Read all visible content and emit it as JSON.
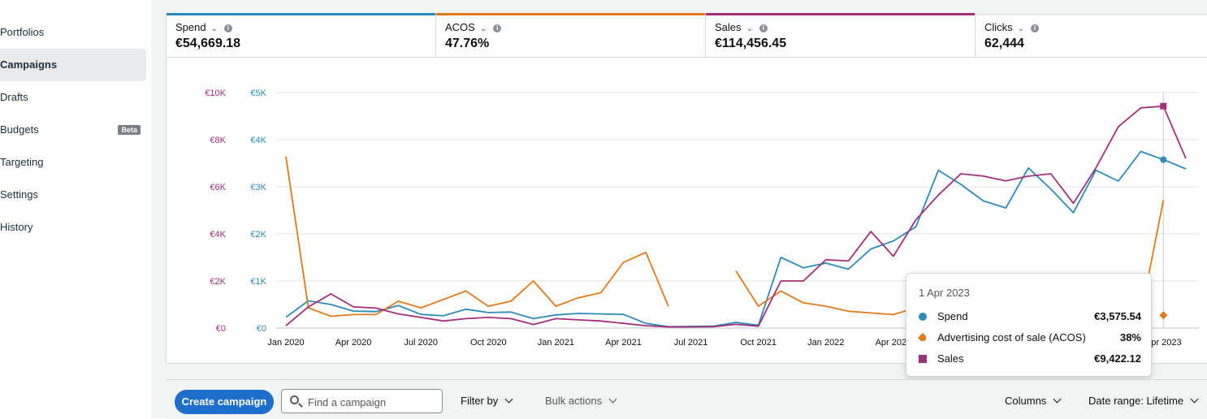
{
  "sidebar": {
    "items": [
      {
        "label": "Portfolios",
        "active": false
      },
      {
        "label": "Campaigns",
        "active": true
      },
      {
        "label": "Drafts",
        "active": false
      },
      {
        "label": "Budgets",
        "active": false,
        "badge": "Beta"
      },
      {
        "label": "Targeting",
        "active": false
      },
      {
        "label": "Settings",
        "active": false
      },
      {
        "label": "History",
        "active": false
      }
    ]
  },
  "metrics": [
    {
      "label": "Spend",
      "value": "€54,669.18",
      "color": "#2e8bb8"
    },
    {
      "label": "ACOS",
      "value": "47.76%",
      "color": "#e07a1b"
    },
    {
      "label": "Sales",
      "value": "€114,456.45",
      "color": "#a1307a"
    },
    {
      "label": "Clicks",
      "value": "62,444",
      "color": "#e9eaec"
    }
  ],
  "chart_data": {
    "type": "line",
    "x": [
      "Jan 2020",
      "Feb 2020",
      "Mar 2020",
      "Apr 2020",
      "May 2020",
      "Jun 2020",
      "Jul 2020",
      "Aug 2020",
      "Sep 2020",
      "Oct 2020",
      "Nov 2020",
      "Dec 2020",
      "Jan 2021",
      "Feb 2021",
      "Mar 2021",
      "Apr 2021",
      "May 2021",
      "Jun 2021",
      "Jul 2021",
      "Aug 2021",
      "Sep 2021",
      "Oct 2021",
      "Nov 2021",
      "Dec 2021",
      "Jan 2022",
      "Feb 2022",
      "Mar 2022",
      "Apr 2022",
      "May 2022",
      "Jun 2022",
      "Jul 2022",
      "Aug 2022",
      "Sep 2022",
      "Oct 2022",
      "Nov 2022",
      "Dec 2022",
      "Jan 2023",
      "Feb 2023",
      "Mar 2023",
      "Apr 2023",
      "May 2023"
    ],
    "x_tick_labels": [
      "Jan 2020",
      "Apr 2020",
      "Jul 2020",
      "Oct 2020",
      "Jan 2021",
      "Apr 2021",
      "Jul 2021",
      "Oct 2021",
      "Jan 2022",
      "Apr 2022",
      "Apr 2023"
    ],
    "left_axis_sales": {
      "ticks": [
        "€0",
        "€2K",
        "€4K",
        "€6K",
        "€8K",
        "€10K"
      ],
      "range": [
        0,
        10000
      ],
      "color": "#a1307a"
    },
    "left_axis_spend": {
      "ticks": [
        "€0",
        "€1K",
        "€2K",
        "€3K",
        "€4K",
        "€5K"
      ],
      "range": [
        0,
        5000
      ],
      "color": "#2e8bb8"
    },
    "series": [
      {
        "name": "Spend",
        "color": "#2e8bb8",
        "axis": "spend",
        "values": [
          230,
          580,
          500,
          360,
          350,
          480,
          290,
          260,
          400,
          330,
          340,
          200,
          280,
          310,
          300,
          290,
          100,
          30,
          35,
          40,
          120,
          60,
          1500,
          1280,
          1380,
          1250,
          1680,
          1850,
          2150,
          3350,
          3050,
          2700,
          2550,
          3400,
          2950,
          2450,
          3350,
          3120,
          3750,
          3575.54,
          3380
        ]
      },
      {
        "name": "ACOS",
        "color": "#e07a1b",
        "axis": "acos",
        "values": [
          51,
          6,
          3.5,
          4,
          4,
          8,
          6,
          8.5,
          11,
          6.5,
          8,
          14,
          6.5,
          9,
          10.5,
          19.5,
          22.5,
          6.5,
          null,
          null,
          17,
          6.5,
          11,
          7.5,
          6.5,
          5,
          4.5,
          4,
          6,
          5,
          5,
          5,
          5,
          4,
          4,
          4,
          4,
          4,
          4,
          38,
          null
        ]
      },
      {
        "name": "Sales",
        "color": "#a1307a",
        "axis": "sales",
        "values": [
          100,
          900,
          1450,
          900,
          850,
          600,
          450,
          300,
          400,
          450,
          400,
          150,
          400,
          350,
          300,
          200,
          100,
          50,
          50,
          60,
          160,
          80,
          2000,
          2000,
          2900,
          2850,
          4100,
          3050,
          4600,
          5650,
          6550,
          6450,
          6250,
          6450,
          6550,
          5300,
          6800,
          8550,
          9350,
          9422.12,
          7200
        ]
      }
    ]
  },
  "tooltip": {
    "date": "1 Apr 2023",
    "rows": [
      {
        "name": "Spend",
        "value": "€3,575.54",
        "color": "#2e8bb8",
        "marker": "circle"
      },
      {
        "name": "Advertising cost of sale (ACOS)",
        "value": "38%",
        "color": "#e07a1b",
        "marker": "diamond"
      },
      {
        "name": "Sales",
        "value": "€9,422.12",
        "color": "#a1307a",
        "marker": "square"
      }
    ]
  },
  "toolbar": {
    "create_label": "Create campaign",
    "search_placeholder": "Find a campaign",
    "filter_label": "Filter by",
    "bulk_label": "Bulk actions",
    "columns_label": "Columns",
    "date_range_label": "Date range: Lifetime"
  }
}
